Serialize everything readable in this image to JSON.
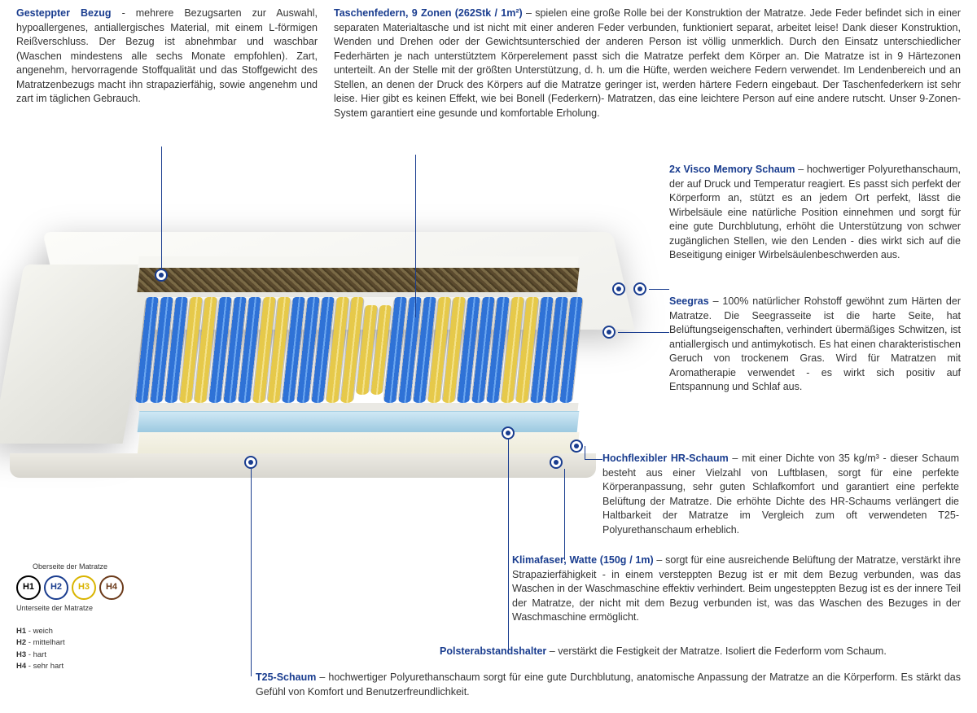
{
  "colors": {
    "title": "#1a3d8f",
    "text": "#333333",
    "lead": "#1a3d8f",
    "spring_blue": "#2f72d6",
    "spring_yellow": "#e6c94a",
    "coir": "#5b4a2e",
    "memory_blue": "#9cc9e0",
    "foam_cream": "#ecead8"
  },
  "topLeft": {
    "title": "Gesteppter Bezug",
    "body": " - mehrere Bezugsarten zur Auswahl, hypoallergenes, antiallergisches Material, mit einem L-förmigen Reißverschluss. Der Bezug ist abnehmbar und waschbar (Waschen mindestens alle sechs Monate empfohlen). Zart, angenehm, hervorragende Stoffqualität und das Stoffgewicht des Matratzenbezugs macht ihn strapazierfähig, sowie angenehm und zart im täglichen Gebrauch."
  },
  "topRight": {
    "title": "Taschenfedern, 9 Zonen (262Stk / 1m²)",
    "body": " – spielen eine große Rolle bei der Konstruktion der Matratze. Jede Feder befindet sich in einer separaten Materialtasche und ist nicht mit einer anderen Feder verbunden, funktioniert separat, arbeitet leise! Dank dieser Konstruktion, Wenden und Drehen oder der Gewichtsunterschied der anderen Person ist völlig unmerklich. Durch den Einsatz unterschiedlicher Federhärten je nach unterstütztem Körperelement passt sich die Matratze perfekt dem Körper an. Die Matratze ist in 9 Härtezonen unterteilt. An der Stelle mit der größten Unterstützung, d. h. um die Hüfte, werden weichere Federn verwendet. Im Lendenbereich und an Stellen, an denen der Druck des Körpers auf die Matratze geringer ist, werden härtere Federn eingebaut. Der Taschenfederkern ist sehr leise. Hier gibt es keinen Effekt, wie bei Bonell (Federkern)- Matratzen, das eine leichtere Person auf eine andere rutscht. Unser 9-Zonen-System garantiert eine gesunde und komfortable Erholung."
  },
  "callouts": {
    "visco": {
      "title": "2x Visco Memory Schaum",
      "body": " – hochwertiger Polyurethanschaum, der auf Druck und Temperatur reagiert. Es passt sich perfekt der Körperform an, stützt es an jedem Ort perfekt, lässt die Wirbelsäule eine natürliche Position einnehmen und sorgt für eine gute Durchblutung, erhöht die Unterstützung von schwer zugänglichen Stellen, wie den Lenden - dies wirkt sich auf die Beseitigung einiger Wirbelsäulenbeschwerden aus."
    },
    "seegras": {
      "title": "Seegras",
      "body": " – 100% natürlicher Rohstoff gewöhnt zum Härten der Matratze. Die Seegrasseite ist die harte Seite, hat Belüftungseigenschaften, verhindert übermäßiges Schwitzen, ist antiallergisch und antimykotisch. Es hat einen charakteristischen Geruch von trockenem Gras. Wird für Matratzen mit Aromatherapie verwendet - es wirkt sich positiv auf Entspannung und Schlaf aus."
    },
    "hr": {
      "title": "Hochflexibler HR-Schaum",
      "body": " – mit einer Dichte von 35 kg/m³ - dieser Schaum besteht aus einer Vielzahl von Luftblasen, sorgt für eine perfekte Körperanpassung, sehr guten Schlafkomfort und garantiert eine perfekte Belüftung der Matratze. Die erhöhte Dichte des HR-Schaums verlängert die Haltbarkeit der Matratze im Vergleich zum oft verwendeten T25-Polyurethanschaum erheblich."
    },
    "klima": {
      "title": "Klimafaser, Watte (150g / 1m)",
      "body": " – sorgt für eine ausreichende Belüftung der Matratze, verstärkt ihre Strapazierfähigkeit - in einem versteppten Bezug ist er mit dem Bezug verbunden, was das Waschen in der Waschmaschine effektiv verhindert. Beim ungesteppten Bezug ist es der innere Teil der Matratze, der nicht mit dem Bezug verbunden ist, was das Waschen des Bezuges in der Waschmaschine ermöglicht."
    },
    "polster": {
      "title": "Polsterabstandshalter",
      "body": " – verstärkt die Festigkeit der Matratze. Isoliert die Federform vom Schaum."
    },
    "t25": {
      "title": "T25-Schaum",
      "body": " – hochwertiger Polyurethanschaum sorgt für eine gute Durchblutung, anatomische Anpassung der Matratze an die Körperform. Es stärkt das Gefühl von Komfort und Benutzerfreundlichkeit."
    }
  },
  "legend": {
    "top": "Oberseite der Matratze",
    "bot": "Unterseite der Matratze",
    "items": [
      {
        "label": "H1",
        "color": "#000000"
      },
      {
        "label": "H2",
        "color": "#1a3d8f"
      },
      {
        "label": "H3",
        "color": "#d9b400"
      },
      {
        "label": "H4",
        "color": "#6b3a1a"
      }
    ],
    "defs": [
      {
        "k": "H1",
        "v": " - weich"
      },
      {
        "k": "H2",
        "v": " - mittelhart"
      },
      {
        "k": "H3",
        "v": " - hart"
      },
      {
        "k": "H4",
        "v": " - sehr hart"
      }
    ]
  },
  "springs": {
    "pattern": [
      "b",
      "b",
      "b",
      "y",
      "y",
      "b",
      "b",
      "b",
      "y",
      "y",
      "b",
      "b",
      "b",
      "y",
      "y",
      "y",
      "y",
      "b",
      "b",
      "b",
      "y",
      "y",
      "b",
      "b",
      "b",
      "y",
      "y",
      "b",
      "b",
      "b"
    ],
    "midYellow": [
      15,
      16
    ]
  }
}
